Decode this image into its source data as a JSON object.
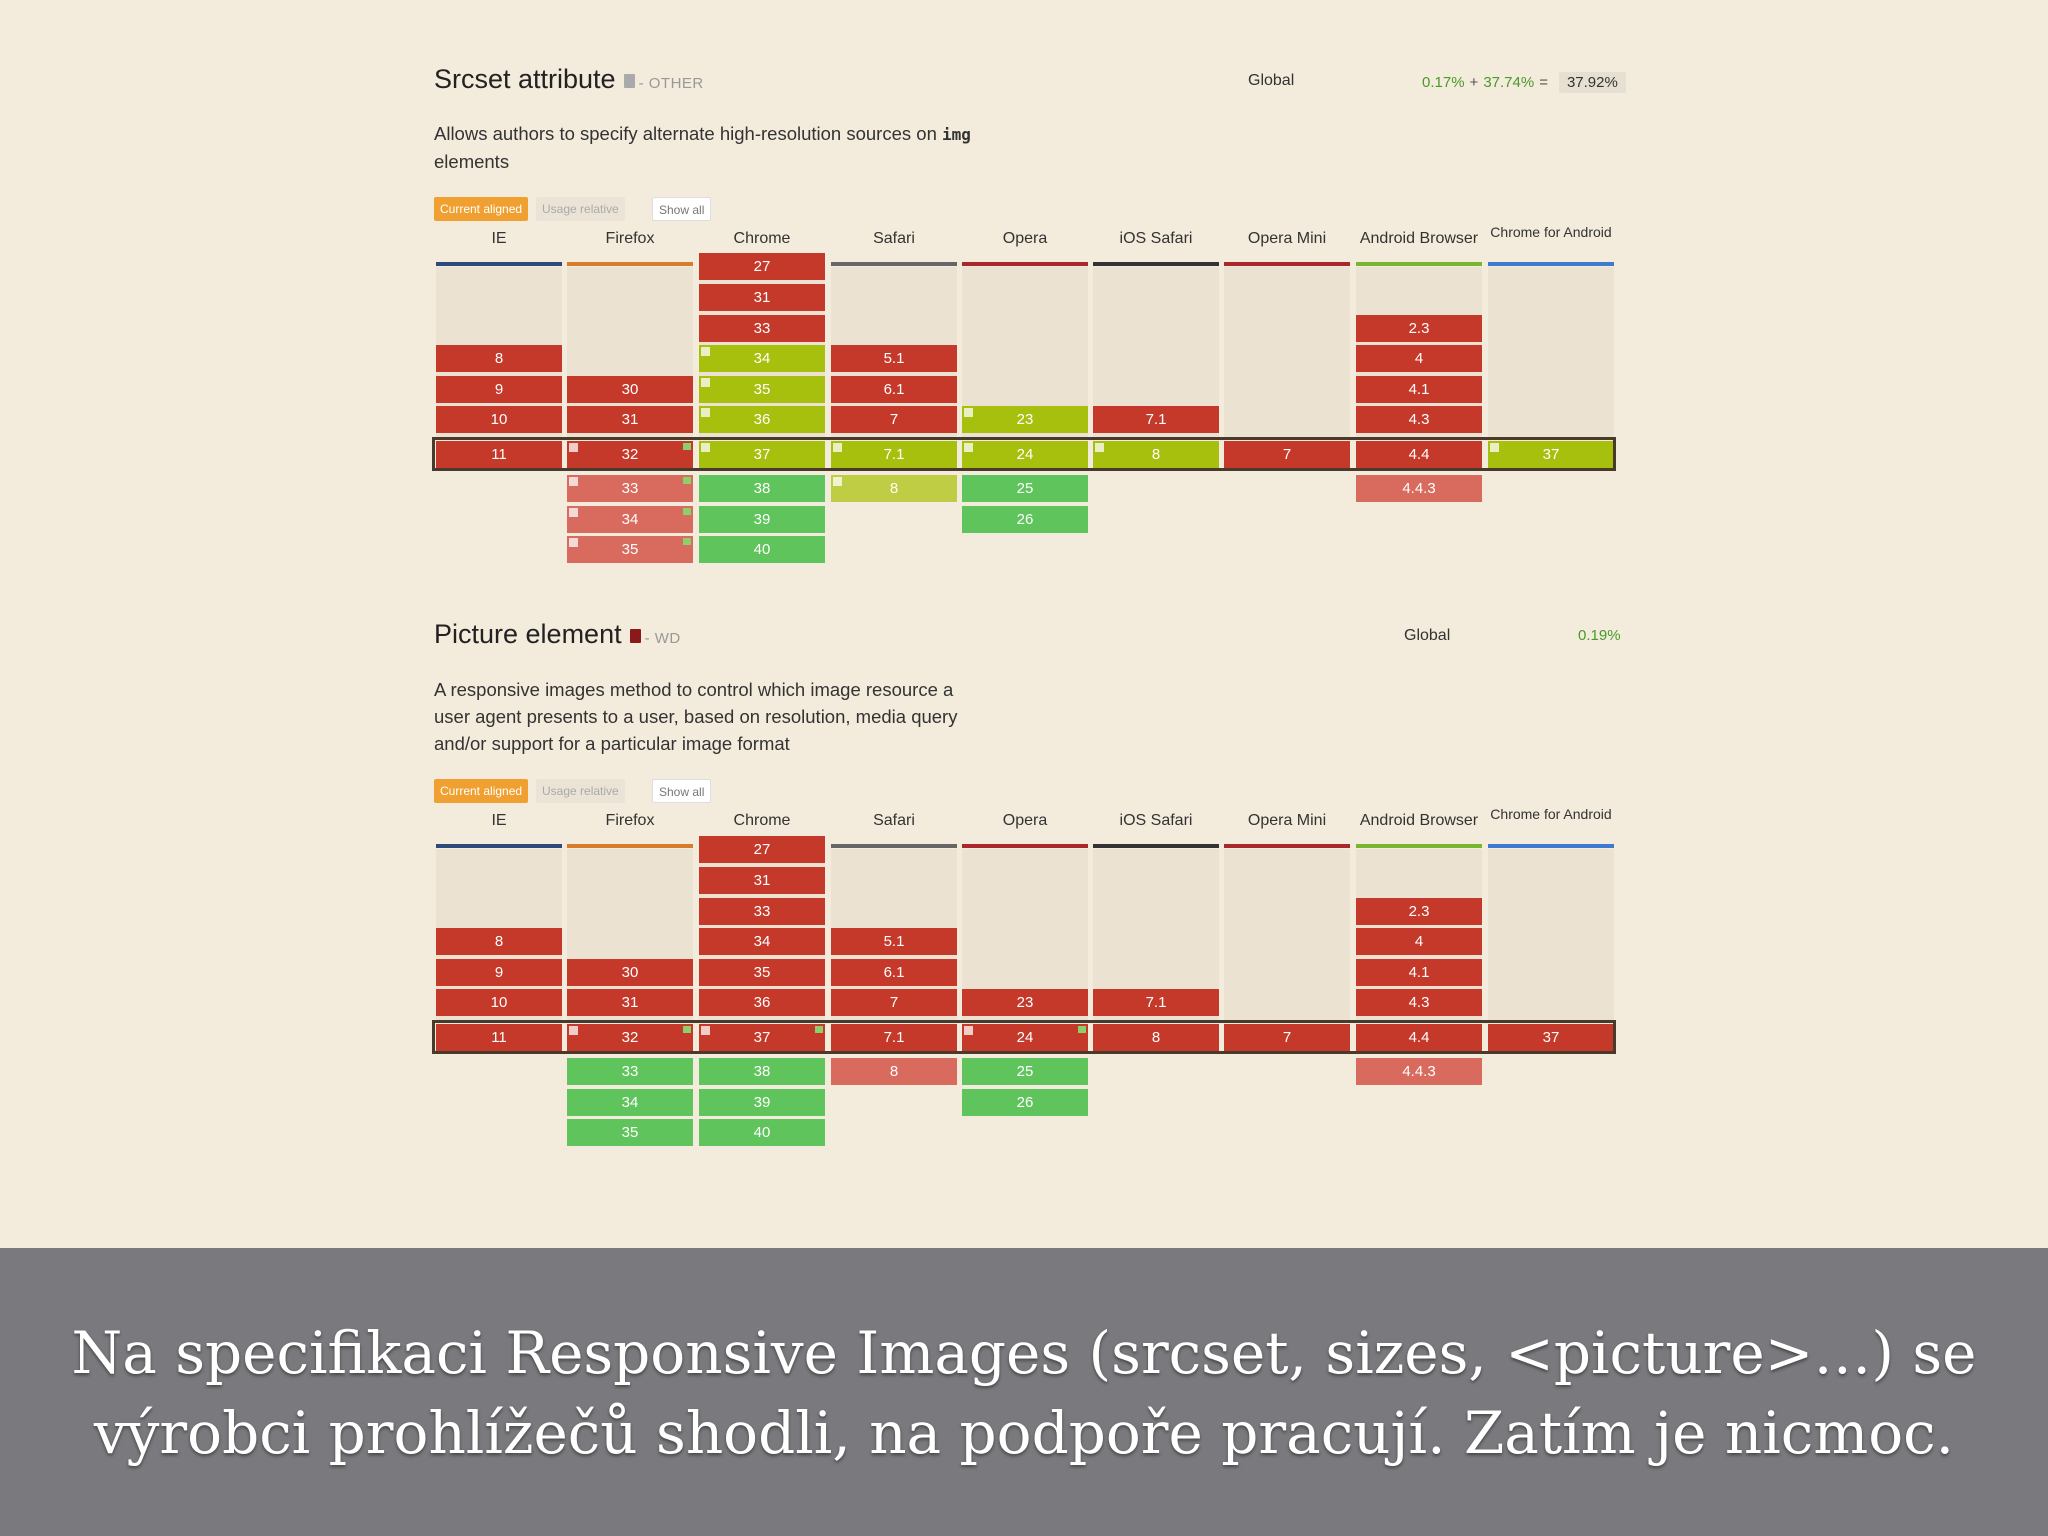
{
  "colors": {
    "background": "#f3ebdb",
    "unsupported": "#c5392b",
    "partial": "#a6c00d",
    "supported": "#5fc45c",
    "caption_band": "#7a797d"
  },
  "controls": {
    "current_aligned": "Current aligned",
    "usage_relative": "Usage relative",
    "show_all": "Show all"
  },
  "browsers": [
    "IE",
    "Firefox",
    "Chrome",
    "Safari",
    "Opera",
    "iOS Safari",
    "Opera Mini",
    "Android Browser",
    "Chrome for Android"
  ],
  "features": [
    {
      "title": "Srcset attribute",
      "status": "- OTHER",
      "status_icon": "document-icon",
      "desc_before": "Allows authors to specify alternate high-resolution sources on ",
      "desc_code": "img",
      "desc_after": " elements",
      "global_label": "Global",
      "usage_supported": "0.17%",
      "usage_plus": "+",
      "usage_partial": "37.74%",
      "usage_equals": "=",
      "usage_total": "37.92%",
      "columns": [
        {
          "above": [],
          "current": {
            "v": "11",
            "s": "n"
          },
          "future": []
        },
        {
          "above": [
            {
              "v": "30",
              "s": "n"
            },
            {
              "v": "31",
              "s": "n"
            }
          ],
          "current": {
            "v": "32",
            "s": "n"
          },
          "future": [
            {
              "v": "33",
              "s": "np"
            },
            {
              "v": "34",
              "s": "np"
            },
            {
              "v": "35",
              "s": "np"
            }
          ]
        },
        {
          "above": [
            {
              "v": "27",
              "s": "n"
            },
            {
              "v": "31",
              "s": "n"
            },
            {
              "v": "33",
              "s": "n"
            },
            {
              "v": "34",
              "s": "a"
            },
            {
              "v": "35",
              "s": "a"
            },
            {
              "v": "36",
              "s": "a"
            }
          ],
          "current": {
            "v": "37",
            "s": "a"
          },
          "future": [
            {
              "v": "38",
              "s": "y"
            },
            {
              "v": "39",
              "s": "y"
            },
            {
              "v": "40",
              "s": "y"
            }
          ]
        },
        {
          "above": [
            {
              "v": "5.1",
              "s": "n"
            },
            {
              "v": "6.1",
              "s": "n"
            },
            {
              "v": "7",
              "s": "n"
            }
          ],
          "current": {
            "v": "7.1",
            "s": "a"
          },
          "future": [
            {
              "v": "8",
              "s": "ap"
            }
          ]
        },
        {
          "above": [
            {
              "v": "23",
              "s": "a"
            }
          ],
          "current": {
            "v": "24",
            "s": "a"
          },
          "future": [
            {
              "v": "25",
              "s": "y"
            },
            {
              "v": "26",
              "s": "y"
            }
          ]
        },
        {
          "above": [
            {
              "v": "7.1",
              "s": "n"
            }
          ],
          "current": {
            "v": "8",
            "s": "a"
          },
          "future": []
        },
        {
          "above": [],
          "current": {
            "v": "7",
            "s": "n"
          },
          "future": []
        },
        {
          "above": [
            {
              "v": "2.3",
              "s": "n"
            },
            {
              "v": "4",
              "s": "n"
            },
            {
              "v": "4.1",
              "s": "n"
            },
            {
              "v": "4.3",
              "s": "n"
            }
          ],
          "current": {
            "v": "4.4",
            "s": "n"
          },
          "future": [
            {
              "v": "4.4.3",
              "s": "np"
            }
          ]
        },
        {
          "above": [],
          "current": {
            "v": "37",
            "s": "a"
          },
          "future": []
        }
      ],
      "ie_extra": [
        {
          "v": "8",
          "s": "n"
        },
        {
          "v": "9",
          "s": "n"
        },
        {
          "v": "10",
          "s": "n"
        }
      ]
    },
    {
      "title": "Picture element",
      "status": "- WD",
      "status_icon": "document-icon",
      "desc_before": "A responsive images method to control which image resource a user agent presents to a user, based on resolution, media query and/or support for a particular image format",
      "desc_code": "",
      "desc_after": "",
      "global_label": "Global",
      "usage_supported": "0.19%",
      "usage_plus": "",
      "usage_partial": "",
      "usage_equals": "",
      "usage_total": "",
      "columns": [
        {
          "above": [],
          "current": {
            "v": "11",
            "s": "n"
          },
          "future": []
        },
        {
          "above": [
            {
              "v": "30",
              "s": "n"
            },
            {
              "v": "31",
              "s": "n"
            }
          ],
          "current": {
            "v": "32",
            "s": "n"
          },
          "future": [
            {
              "v": "33",
              "s": "y"
            },
            {
              "v": "34",
              "s": "y"
            },
            {
              "v": "35",
              "s": "y"
            }
          ]
        },
        {
          "above": [
            {
              "v": "27",
              "s": "n"
            },
            {
              "v": "31",
              "s": "n"
            },
            {
              "v": "33",
              "s": "n"
            },
            {
              "v": "34",
              "s": "n"
            },
            {
              "v": "35",
              "s": "n"
            },
            {
              "v": "36",
              "s": "n"
            }
          ],
          "current": {
            "v": "37",
            "s": "n"
          },
          "future": [
            {
              "v": "38",
              "s": "y"
            },
            {
              "v": "39",
              "s": "y"
            },
            {
              "v": "40",
              "s": "y"
            }
          ]
        },
        {
          "above": [
            {
              "v": "5.1",
              "s": "n"
            },
            {
              "v": "6.1",
              "s": "n"
            },
            {
              "v": "7",
              "s": "n"
            }
          ],
          "current": {
            "v": "7.1",
            "s": "n"
          },
          "future": [
            {
              "v": "8",
              "s": "np"
            }
          ]
        },
        {
          "above": [
            {
              "v": "23",
              "s": "n"
            }
          ],
          "current": {
            "v": "24",
            "s": "n"
          },
          "future": [
            {
              "v": "25",
              "s": "y"
            },
            {
              "v": "26",
              "s": "y"
            }
          ]
        },
        {
          "above": [
            {
              "v": "7.1",
              "s": "n"
            }
          ],
          "current": {
            "v": "8",
            "s": "n"
          },
          "future": []
        },
        {
          "above": [],
          "current": {
            "v": "7",
            "s": "n"
          },
          "future": []
        },
        {
          "above": [
            {
              "v": "2.3",
              "s": "n"
            },
            {
              "v": "4",
              "s": "n"
            },
            {
              "v": "4.1",
              "s": "n"
            },
            {
              "v": "4.3",
              "s": "n"
            }
          ],
          "current": {
            "v": "4.4",
            "s": "n"
          },
          "future": [
            {
              "v": "4.4.3",
              "s": "np"
            }
          ]
        },
        {
          "above": [],
          "current": {
            "v": "37",
            "s": "n"
          },
          "future": []
        }
      ],
      "ie_extra": [
        {
          "v": "8",
          "s": "n"
        },
        {
          "v": "9",
          "s": "n"
        },
        {
          "v": "10",
          "s": "n"
        }
      ]
    }
  ],
  "caption": {
    "line1": "Na specifikaci Responsive Images (srcset, sizes, <picture>…) se",
    "line2": "výrobci prohlížečů shodli, na podpoře pracují. Zatím je nicmoc."
  }
}
